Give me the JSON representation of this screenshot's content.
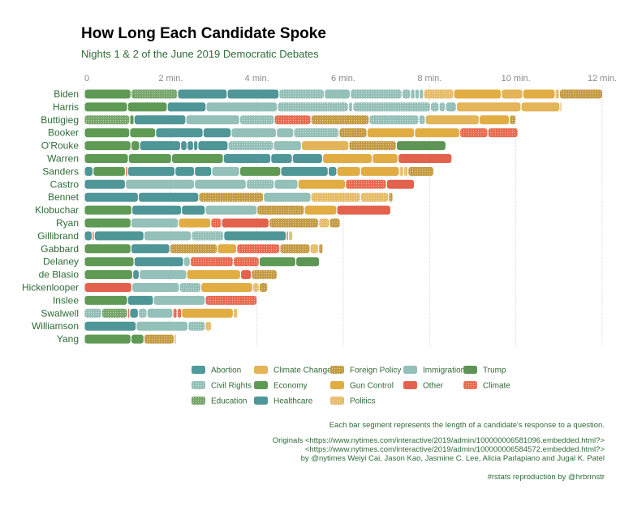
{
  "title": "How Long Each Candidate Spoke",
  "subtitle": "Nights 1 & 2 of the June 2019 Democratic Debates",
  "colors": {
    "Abortion": "#4f9a9c",
    "Civil Rights": "#93bfb7",
    "Climate": "#e8694f",
    "Climate Change": "#e3b558",
    "Economy": "#5f9a55",
    "Education": "#76a56a",
    "Foreign Policy": "#c49a42",
    "Gun Control": "#e1ad43",
    "Healthcare": "#4f9698",
    "Immigration": "#93c0b8",
    "Other": "#e3624d",
    "Politics": "#e6bb68",
    "Trump": "#5d9555"
  },
  "patterned_topics": [
    "Civil Rights",
    "Climate",
    "Education",
    "Foreign Policy",
    "Politics"
  ],
  "legend": {
    "items": [
      "Abortion",
      "Climate Change",
      "Foreign Policy",
      "Immigration",
      "Trump",
      "Civil Rights",
      "Economy",
      "Gun Control",
      "Other",
      "Climate",
      "Education",
      "Healthcare",
      "Politics"
    ]
  },
  "chart_data": {
    "type": "bar",
    "orientation": "horizontal-stacked",
    "title": "How Long Each Candidate Spoke",
    "subtitle": "Nights 1 & 2 of the June 2019 Democratic Debates",
    "x_unit": "minutes",
    "xlim": [
      0,
      12
    ],
    "x_ticks": [
      0,
      2,
      4,
      6,
      8,
      10,
      12
    ],
    "x_tick_labels": [
      "0",
      "2 min.",
      "4 min.",
      "6 min.",
      "8 min.",
      "10 min.",
      "12 min."
    ],
    "grid": true,
    "legend_position": "bottom",
    "candidates": [
      {
        "name": "Biden",
        "segments": [
          [
            "Economy",
            1.08
          ],
          [
            "Education",
            1.08
          ],
          [
            "Healthcare",
            1.15
          ],
          [
            "Healthcare",
            1.2
          ],
          [
            "Civil Rights",
            1.05
          ],
          [
            "Immigration",
            0.6
          ],
          [
            "Civil Rights",
            1.2
          ],
          [
            "Civil Rights",
            0.2
          ],
          [
            "Immigration",
            0.1
          ],
          [
            "Immigration",
            0.1
          ],
          [
            "Immigration",
            0.1
          ],
          [
            "Politics",
            0.7
          ],
          [
            "Gun Control",
            1.1
          ],
          [
            "Climate Change",
            0.5
          ],
          [
            "Gun Control",
            0.75
          ],
          [
            "Politics",
            0.1
          ],
          [
            "Foreign Policy",
            1.0
          ]
        ]
      },
      {
        "name": "Harris",
        "segments": [
          [
            "Economy",
            1.0
          ],
          [
            "Economy",
            0.92
          ],
          [
            "Healthcare",
            0.9
          ],
          [
            "Immigration",
            1.65
          ],
          [
            "Civil Rights",
            1.65
          ],
          [
            "Civil Rights",
            0.1
          ],
          [
            "Civil Rights",
            1.8
          ],
          [
            "Civil Rights",
            0.2
          ],
          [
            "Civil Rights",
            0.15
          ],
          [
            "Immigration",
            0.25
          ],
          [
            "Climate Change",
            1.5
          ],
          [
            "Climate Change",
            0.9
          ],
          [
            "Politics",
            0.05
          ]
        ]
      },
      {
        "name": "Buttigieg",
        "segments": [
          [
            "Education",
            1.05
          ],
          [
            "Economy",
            0.1
          ],
          [
            "Healthcare",
            1.2
          ],
          [
            "Immigration",
            1.25
          ],
          [
            "Civil Rights",
            0.8
          ],
          [
            "Climate",
            0.85
          ],
          [
            "Foreign Policy",
            1.35
          ],
          [
            "Civil Rights",
            1.15
          ],
          [
            "Civil Rights",
            0.15
          ],
          [
            "Climate Change",
            1.25
          ],
          [
            "Gun Control",
            0.7
          ],
          [
            "Foreign Policy",
            0.15
          ]
        ]
      },
      {
        "name": "Booker",
        "segments": [
          [
            "Economy",
            1.05
          ],
          [
            "Economy",
            0.6
          ],
          [
            "Healthcare",
            1.1
          ],
          [
            "Healthcare",
            0.65
          ],
          [
            "Immigration",
            1.05
          ],
          [
            "Immigration",
            0.4
          ],
          [
            "Civil Rights",
            1.05
          ],
          [
            "Foreign Policy",
            0.65
          ],
          [
            "Gun Control",
            1.1
          ],
          [
            "Gun Control",
            1.05
          ],
          [
            "Climate",
            0.65
          ],
          [
            "Climate",
            0.7
          ]
        ]
      },
      {
        "name": "O'Rouke",
        "segments": [
          [
            "Economy",
            1.08
          ],
          [
            "Economy",
            0.2
          ],
          [
            "Healthcare",
            0.95
          ],
          [
            "Healthcare",
            0.15
          ],
          [
            "Healthcare",
            0.15
          ],
          [
            "Healthcare",
            0.1
          ],
          [
            "Healthcare",
            0.7
          ],
          [
            "Civil Rights",
            1.05
          ],
          [
            "Immigration",
            0.65
          ],
          [
            "Climate Change",
            1.1
          ],
          [
            "Foreign Policy",
            1.1
          ],
          [
            "Trump",
            1.15
          ]
        ]
      },
      {
        "name": "Warren",
        "segments": [
          [
            "Economy",
            1.02
          ],
          [
            "Economy",
            1.0
          ],
          [
            "Economy",
            1.2
          ],
          [
            "Healthcare",
            1.1
          ],
          [
            "Healthcare",
            0.5
          ],
          [
            "Healthcare",
            0.7
          ],
          [
            "Gun Control",
            1.15
          ],
          [
            "Gun Control",
            0.6
          ],
          [
            "Other",
            1.25
          ]
        ]
      },
      {
        "name": "Sanders",
        "segments": [
          [
            "Healthcare",
            0.2
          ],
          [
            "Economy",
            0.75
          ],
          [
            "Climate",
            0.05
          ],
          [
            "Healthcare",
            1.1
          ],
          [
            "Healthcare",
            0.45
          ],
          [
            "Healthcare",
            0.4
          ],
          [
            "Immigration",
            0.65
          ],
          [
            "Economy",
            0.95
          ],
          [
            "Healthcare",
            1.1
          ],
          [
            "Healthcare",
            0.2
          ],
          [
            "Gun Control",
            0.55
          ],
          [
            "Gun Control",
            0.9
          ],
          [
            "Politics",
            0.1
          ],
          [
            "Politics",
            0.1
          ],
          [
            "Foreign Policy",
            0.6
          ]
        ]
      },
      {
        "name": "Castro",
        "segments": [
          [
            "Healthcare",
            0.95
          ],
          [
            "Immigration",
            1.6
          ],
          [
            "Immigration",
            1.2
          ],
          [
            "Civil Rights",
            0.65
          ],
          [
            "Immigration",
            0.55
          ],
          [
            "Gun Control",
            1.1
          ],
          [
            "Climate",
            0.95
          ],
          [
            "Other",
            0.65
          ]
        ]
      },
      {
        "name": "Bennet",
        "segments": [
          [
            "Healthcare",
            1.25
          ],
          [
            "Healthcare",
            1.4
          ],
          [
            "Foreign Policy",
            1.5
          ],
          [
            "Immigration",
            1.1
          ],
          [
            "Politics",
            1.15
          ],
          [
            "Politics",
            0.65
          ],
          [
            "Foreign Policy",
            0.1
          ]
        ]
      },
      {
        "name": "Klobuchar",
        "segments": [
          [
            "Economy",
            1.1
          ],
          [
            "Healthcare",
            1.15
          ],
          [
            "Healthcare",
            0.55
          ],
          [
            "Immigration",
            1.2
          ],
          [
            "Foreign Policy",
            1.1
          ],
          [
            "Gun Control",
            0.75
          ],
          [
            "Other",
            1.25
          ]
        ]
      },
      {
        "name": "Ryan",
        "segments": [
          [
            "Economy",
            1.08
          ],
          [
            "Immigration",
            1.1
          ],
          [
            "Gun Control",
            0.75
          ],
          [
            "Climate",
            0.25
          ],
          [
            "Other",
            1.1
          ],
          [
            "Foreign Policy",
            1.15
          ],
          [
            "Politics",
            0.25
          ],
          [
            "Foreign Policy",
            0.25
          ]
        ]
      },
      {
        "name": "Gillibrand",
        "segments": [
          [
            "Healthcare",
            0.18
          ],
          [
            "Climate",
            0.05
          ],
          [
            "Healthcare",
            1.15
          ],
          [
            "Immigration",
            1.1
          ],
          [
            "Civil Rights",
            0.75
          ],
          [
            "Healthcare",
            1.45
          ],
          [
            "Foreign Policy",
            0.05
          ],
          [
            "Politics",
            0.1
          ]
        ]
      },
      {
        "name": "Gabbard",
        "segments": [
          [
            "Economy",
            1.08
          ],
          [
            "Healthcare",
            0.9
          ],
          [
            "Foreign Policy",
            1.1
          ],
          [
            "Gun Control",
            0.45
          ],
          [
            "Climate",
            1.0
          ],
          [
            "Foreign Policy",
            0.7
          ],
          [
            "Politics",
            0.2
          ],
          [
            "Foreign Policy",
            0.1
          ]
        ]
      },
      {
        "name": "Delaney",
        "segments": [
          [
            "Economy",
            1.15
          ],
          [
            "Healthcare",
            1.15
          ],
          [
            "Immigration",
            0.15
          ],
          [
            "Climate",
            1.0
          ],
          [
            "Climate",
            0.6
          ],
          [
            "Economy",
            0.85
          ],
          [
            "Trump",
            0.55
          ]
        ]
      },
      {
        "name": "de Blasio",
        "segments": [
          [
            "Economy",
            1.12
          ],
          [
            "Healthcare",
            0.15
          ],
          [
            "Immigration",
            1.1
          ],
          [
            "Gun Control",
            1.25
          ],
          [
            "Other",
            0.25
          ],
          [
            "Foreign Policy",
            0.6
          ]
        ]
      },
      {
        "name": "Hickenlooper",
        "segments": [
          [
            "Other",
            1.1
          ],
          [
            "Immigration",
            1.1
          ],
          [
            "Civil Rights",
            0.5
          ],
          [
            "Gun Control",
            1.2
          ],
          [
            "Politics",
            0.15
          ],
          [
            "Foreign Policy",
            0.2
          ]
        ]
      },
      {
        "name": "Inslee",
        "segments": [
          [
            "Economy",
            1.0
          ],
          [
            "Healthcare",
            0.6
          ],
          [
            "Immigration",
            1.2
          ],
          [
            "Climate",
            1.2
          ]
        ]
      },
      {
        "name": "Swalwell",
        "segments": [
          [
            "Civil Rights",
            0.4
          ],
          [
            "Education",
            0.6
          ],
          [
            "Climate",
            0.05
          ],
          [
            "Healthcare",
            0.2
          ],
          [
            "Civil Rights",
            0.2
          ],
          [
            "Immigration",
            0.6
          ],
          [
            "Climate",
            0.1
          ],
          [
            "Climate",
            0.1
          ],
          [
            "Gun Control",
            1.2
          ],
          [
            "Politics",
            0.1
          ]
        ]
      },
      {
        "name": "Williamson",
        "segments": [
          [
            "Healthcare",
            1.2
          ],
          [
            "Immigration",
            1.2
          ],
          [
            "Civil Rights",
            0.4
          ],
          [
            "Politics",
            0.15
          ]
        ]
      },
      {
        "name": "Yang",
        "segments": [
          [
            "Economy",
            1.08
          ],
          [
            "Economy",
            0.3
          ],
          [
            "Foreign Policy",
            0.7
          ],
          [
            "Politics",
            0.05
          ]
        ]
      }
    ]
  },
  "caption": {
    "line1": "Each bar segment represents the length of a candidate's response to a question.",
    "line2": "Originals <https://www.nytimes.com/interactive/2019/admin/100000006581096.embedded.html?>",
    "line3": "<https://www.nytimes.com/interactive/2019/admin/100000006584572.embedded.html?>",
    "line4": "by @nytimes Weiyi Cai, Jason Kao, Jasmine C. Lee, Alicia Parlapiano and Jugal K. Patel",
    "line5": "#rstats reproduction by @hrbrmstr"
  }
}
